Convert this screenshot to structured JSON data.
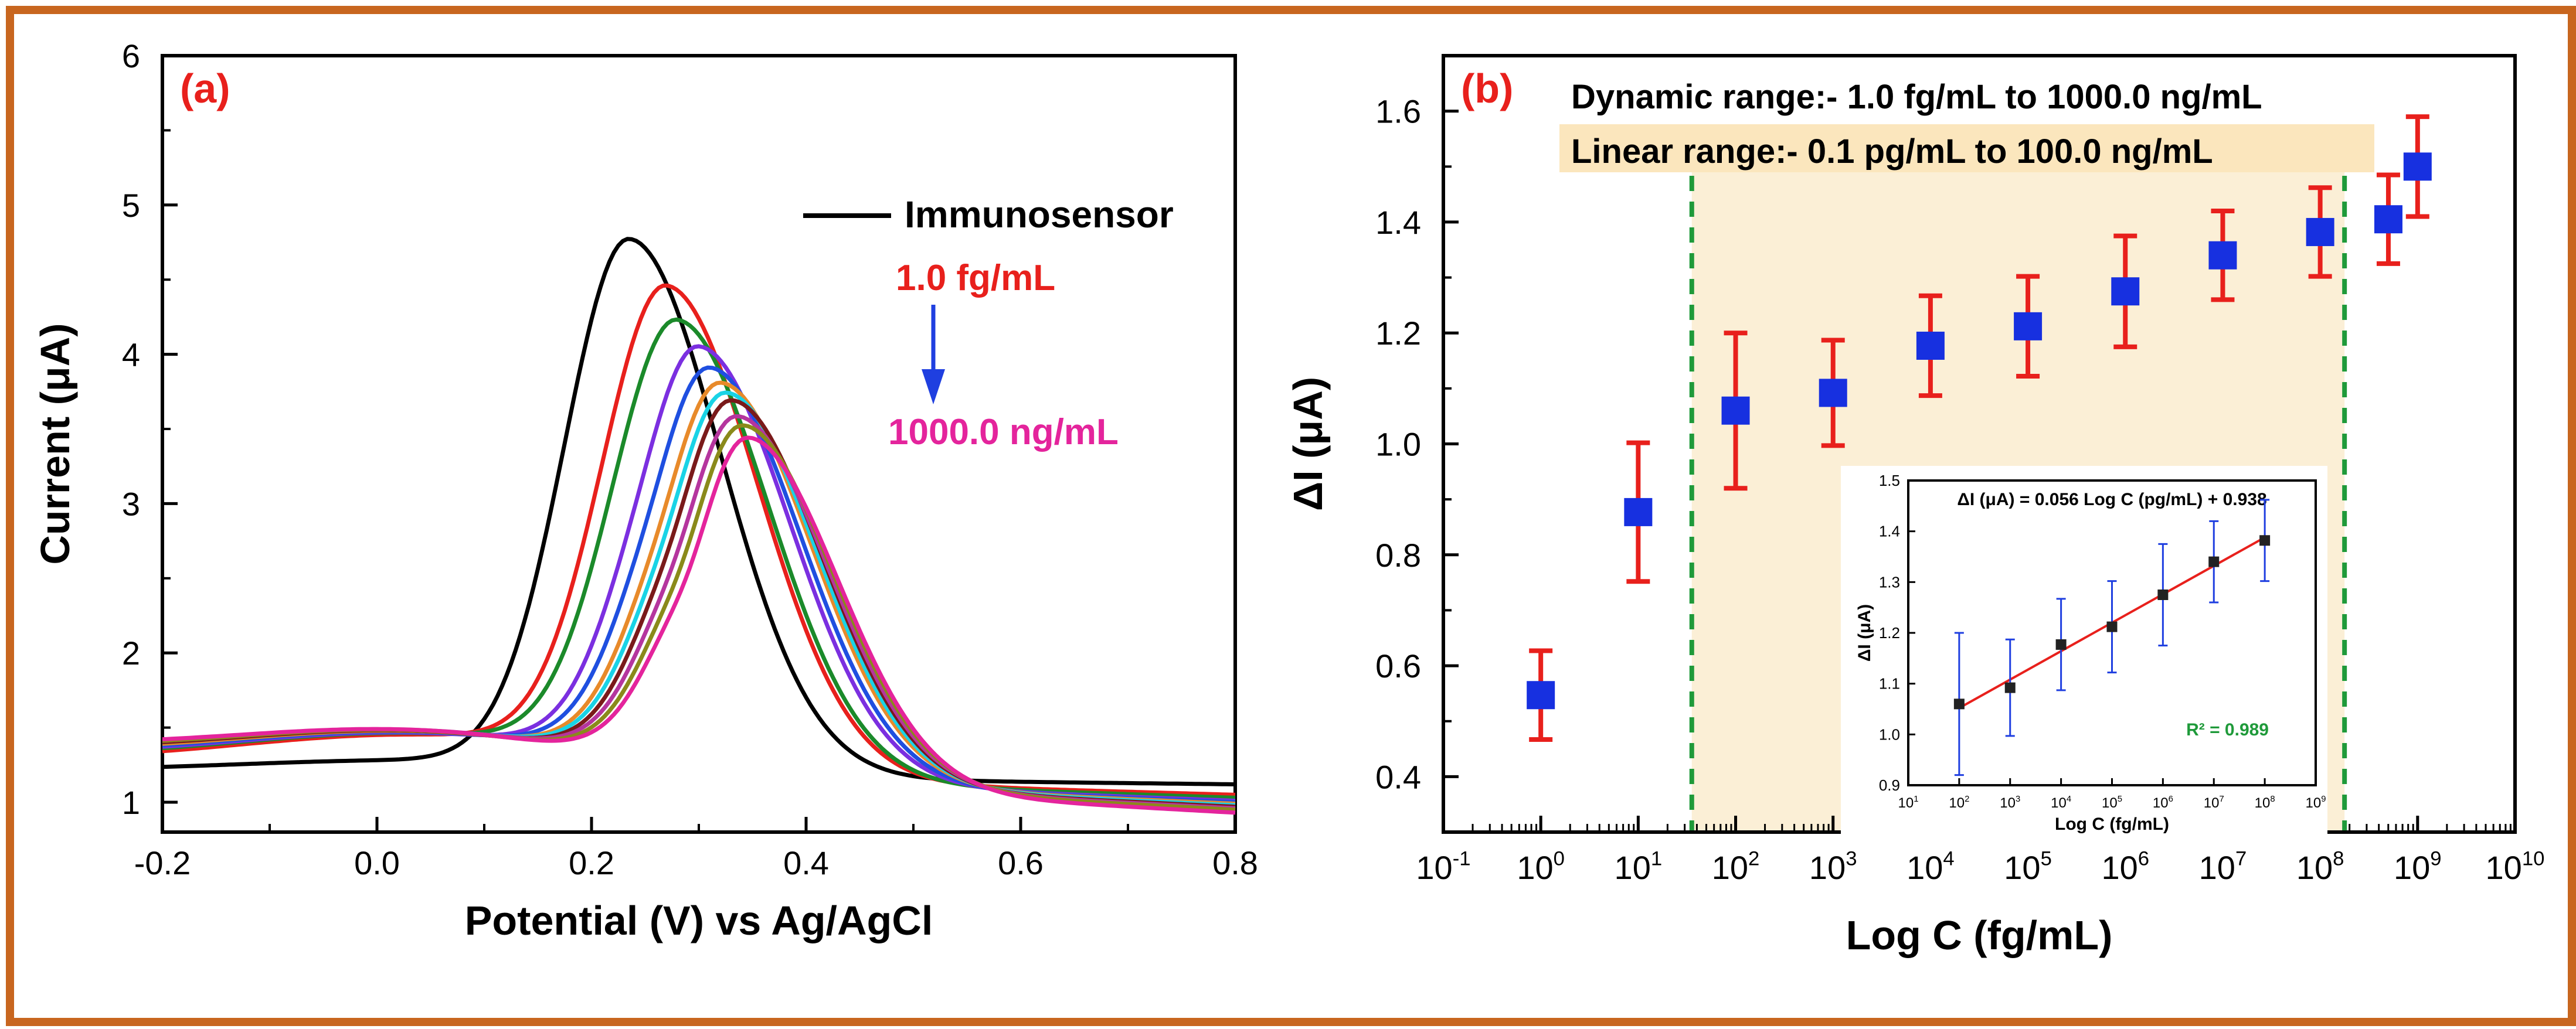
{
  "figure": {
    "border_color": "#c8661f"
  },
  "chart_data": [
    {
      "panel": "a",
      "type": "line",
      "panel_label": "(a)",
      "title": "",
      "xlabel": "Potential (V) vs Ag/AgCl",
      "ylabel": "Current (μA)",
      "xlim": [
        -0.2,
        0.8
      ],
      "ylim": [
        0.8,
        6
      ],
      "xticks": [
        -0.2,
        0.0,
        0.2,
        0.4,
        0.6,
        0.8
      ],
      "xtick_labels": [
        "-0.2",
        "0.0",
        "0.2",
        "0.4",
        "0.6",
        "0.8"
      ],
      "yticks": [
        1,
        2,
        3,
        4,
        5,
        6
      ],
      "ytick_labels": [
        "1",
        "2",
        "3",
        "4",
        "5",
        "6"
      ],
      "legend": {
        "entry": "Immunosensor",
        "top_label": "1.0 fg/mL",
        "bottom_label": "1000.0 ng/mL",
        "top_color": "#e8201c",
        "bottom_color": "#e4249c",
        "arrow_color": "#1f3fe0"
      },
      "series": [
        {
          "name": "Immunosensor",
          "color": "#000000",
          "peak": 5.0,
          "peak_x": 0.235,
          "shoulder": 0,
          "start": 1.2,
          "end": 1.12
        },
        {
          "name": "1.0 fg/mL",
          "color": "#e8201c",
          "peak": 4.64,
          "peak_x": 0.27,
          "shoulder": 0,
          "start": 1.25,
          "end": 1.05
        },
        {
          "name": "c3",
          "color": "#1b8a2a",
          "peak": 4.42,
          "peak_x": 0.28,
          "shoulder": 0,
          "start": 1.27,
          "end": 1.03
        },
        {
          "name": "c4",
          "color": "#7b2fe0",
          "peak": 4.27,
          "peak_x": 0.3,
          "shoulder": 0.05,
          "start": 1.28,
          "end": 1.01
        },
        {
          "name": "c5",
          "color": "#1f4fe0",
          "peak": 4.14,
          "peak_x": 0.31,
          "shoulder": 0.08,
          "start": 1.29,
          "end": 1.0
        },
        {
          "name": "c6",
          "color": "#e88a2a",
          "peak": 4.05,
          "peak_x": 0.32,
          "shoulder": 0.1,
          "start": 1.3,
          "end": 0.99
        },
        {
          "name": "c7",
          "color": "#19d3e6",
          "peak": 3.99,
          "peak_x": 0.325,
          "shoulder": 0.12,
          "start": 1.31,
          "end": 0.98
        },
        {
          "name": "c8",
          "color": "#7a1a1a",
          "peak": 3.95,
          "peak_x": 0.33,
          "shoulder": 0.14,
          "start": 1.31,
          "end": 0.97
        },
        {
          "name": "c9",
          "color": "#b5359e",
          "peak": 3.85,
          "peak_x": 0.335,
          "shoulder": 0.16,
          "start": 1.32,
          "end": 0.96
        },
        {
          "name": "c10",
          "color": "#8a8a1a",
          "peak": 3.8,
          "peak_x": 0.34,
          "shoulder": 0.18,
          "start": 1.32,
          "end": 0.95
        },
        {
          "name": "1000.0 ng/mL",
          "color": "#e4249c",
          "peak": 3.73,
          "peak_x": 0.345,
          "shoulder": 0.2,
          "start": 1.33,
          "end": 0.93
        }
      ]
    },
    {
      "panel": "b",
      "type": "scatter",
      "panel_label": "(b)",
      "title": "",
      "xlabel": "Log C (fg/mL)",
      "ylabel": "ΔI (μA)",
      "xscale": "log",
      "xlim_exp": [
        -1,
        10
      ],
      "ylim": [
        0.3,
        1.7
      ],
      "yticks": [
        0.4,
        0.6,
        0.8,
        1.0,
        1.2,
        1.4,
        1.6
      ],
      "ytick_labels": [
        "0.4",
        "0.6",
        "0.8",
        "1.0",
        "1.2",
        "1.4",
        "1.6"
      ],
      "xtick_exponents": [
        -1,
        0,
        1,
        2,
        3,
        4,
        5,
        6,
        7,
        8,
        9,
        10
      ],
      "xtick_base": "10",
      "annotations": {
        "dynamic_range": "Dynamic range:- 1.0 fg/mL to 1000.0 ng/mL",
        "linear_range": "Linear range:- 0.1 pg/mL to 100.0 ng/mL",
        "linear_region_exp": [
          1.55,
          8.25
        ],
        "shade_color": "#fbefd6",
        "guide_color": "#1f9a3a"
      },
      "marker_color": "#1730e0",
      "error_color": "#e8201c",
      "points": [
        {
          "x_exp": 0,
          "y": 0.547,
          "err": 0.08
        },
        {
          "x_exp": 1,
          "y": 0.877,
          "err": 0.125
        },
        {
          "x_exp": 2,
          "y": 1.06,
          "err": 0.14
        },
        {
          "x_exp": 3,
          "y": 1.092,
          "err": 0.095
        },
        {
          "x_exp": 4,
          "y": 1.177,
          "err": 0.09
        },
        {
          "x_exp": 5,
          "y": 1.212,
          "err": 0.09
        },
        {
          "x_exp": 6,
          "y": 1.275,
          "err": 0.1
        },
        {
          "x_exp": 7,
          "y": 1.34,
          "err": 0.08
        },
        {
          "x_exp": 8,
          "y": 1.382,
          "err": 0.08
        },
        {
          "x_exp": 8.7,
          "y": 1.405,
          "err": 0.08
        },
        {
          "x_exp": 9,
          "y": 1.5,
          "err": 0.09
        }
      ],
      "inset": {
        "type": "scatter",
        "equation": "ΔI (μA) = 0.056 Log C (pg/mL) + 0.938",
        "r2": "R² = 0.989",
        "xlabel": "Log C (fg/mL)",
        "ylabel": "ΔI (μA)",
        "xlim_exp": [
          1,
          9
        ],
        "ylim": [
          0.9,
          1.5
        ],
        "yticks": [
          0.9,
          1.0,
          1.1,
          1.2,
          1.3,
          1.4,
          1.5
        ],
        "ytick_labels": [
          "0.9",
          "1.0",
          "1.1",
          "1.2",
          "1.3",
          "1.4",
          "1.5"
        ],
        "xtick_exponents": [
          1,
          2,
          3,
          4,
          5,
          6,
          7,
          8,
          9
        ],
        "xtick_base": "10",
        "fit_color": "#e8201c",
        "error_color": "#1f3fe0",
        "r2_color": "#1f9a3a",
        "fit_line": {
          "x_exp_start": 2,
          "x_exp_end": 8,
          "y_start": 1.052,
          "y_end": 1.388
        },
        "points": [
          {
            "x_exp": 2,
            "y": 1.06,
            "err": 0.14
          },
          {
            "x_exp": 3,
            "y": 1.092,
            "err": 0.095
          },
          {
            "x_exp": 4,
            "y": 1.177,
            "err": 0.09
          },
          {
            "x_exp": 5,
            "y": 1.212,
            "err": 0.09
          },
          {
            "x_exp": 6,
            "y": 1.275,
            "err": 0.1
          },
          {
            "x_exp": 7,
            "y": 1.34,
            "err": 0.08
          },
          {
            "x_exp": 8,
            "y": 1.382,
            "err": 0.08
          }
        ]
      }
    }
  ]
}
